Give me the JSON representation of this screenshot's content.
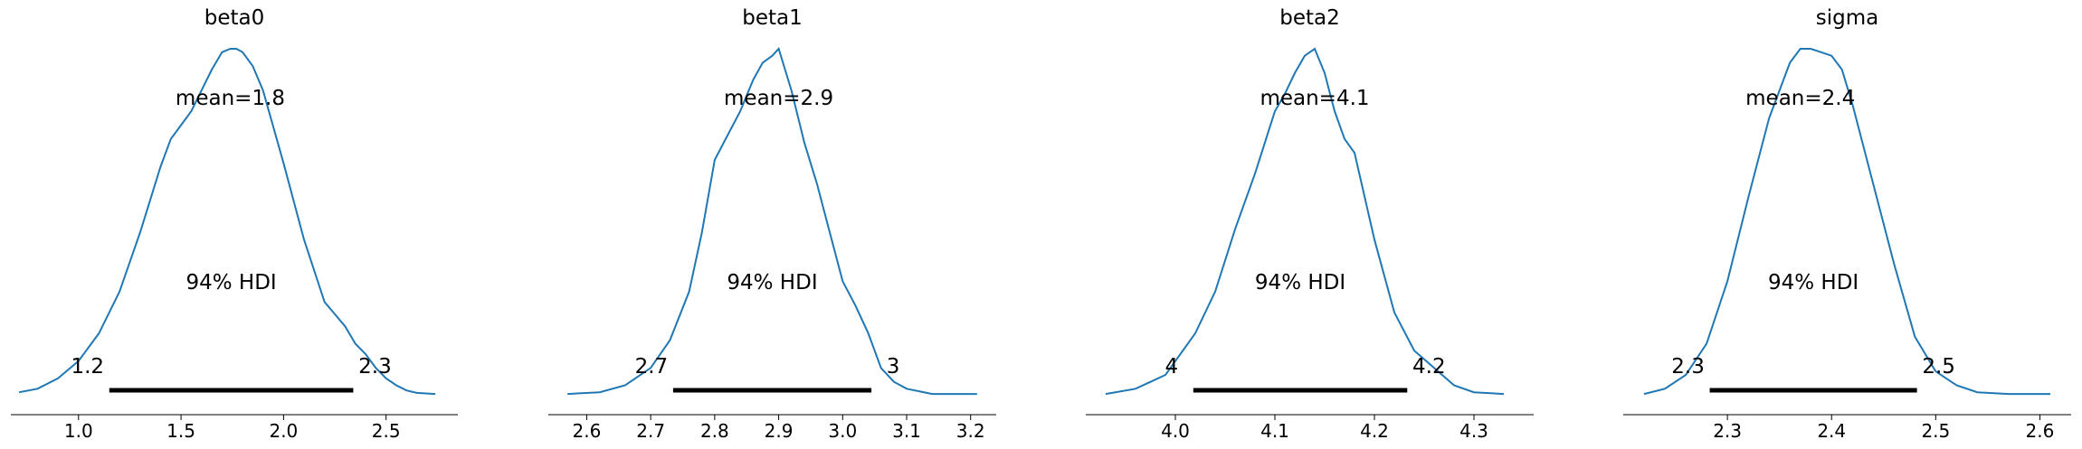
{
  "colors": {
    "line": "#1f77b4",
    "hdi_bar": "#000000",
    "axis": "#000000"
  },
  "chart_data": [
    {
      "type": "line",
      "title": "beta0",
      "mean_label": "mean=1.8",
      "hdi_prob_label": "94% HDI",
      "hdi": [
        1.15,
        2.34
      ],
      "hdi_labels": [
        "1.2",
        "2.3"
      ],
      "xlim": [
        0.67,
        2.85
      ],
      "xticks": [
        1.0,
        1.5,
        2.0,
        2.5
      ],
      "xtick_labels": [
        "1.0",
        "1.5",
        "2.0",
        "2.5"
      ],
      "x": [
        0.71,
        0.8,
        0.9,
        1.0,
        1.1,
        1.2,
        1.3,
        1.4,
        1.45,
        1.5,
        1.55,
        1.6,
        1.65,
        1.7,
        1.74,
        1.77,
        1.8,
        1.85,
        1.9,
        2.0,
        2.1,
        2.2,
        2.3,
        2.35,
        2.4,
        2.45,
        2.5,
        2.55,
        2.6,
        2.65,
        2.74
      ],
      "y": [
        0.01,
        0.02,
        0.05,
        0.1,
        0.18,
        0.3,
        0.47,
        0.66,
        0.74,
        0.78,
        0.82,
        0.88,
        0.94,
        0.99,
        1.0,
        1.0,
        0.99,
        0.95,
        0.88,
        0.67,
        0.45,
        0.27,
        0.2,
        0.15,
        0.12,
        0.08,
        0.05,
        0.03,
        0.015,
        0.008,
        0.005
      ]
    },
    {
      "type": "line",
      "title": "beta1",
      "mean_label": "mean=2.9",
      "hdi_prob_label": "94% HDI",
      "hdi": [
        2.735,
        3.045
      ],
      "hdi_labels": [
        "2.7",
        "3"
      ],
      "xlim": [
        2.54,
        3.24
      ],
      "xticks": [
        2.6,
        2.7,
        2.8,
        2.9,
        3.0,
        3.1,
        3.2
      ],
      "xtick_labels": [
        "2.6",
        "2.7",
        "2.8",
        "2.9",
        "3.0",
        "3.1",
        "3.2"
      ],
      "x": [
        2.57,
        2.62,
        2.66,
        2.7,
        2.73,
        2.76,
        2.78,
        2.8,
        2.82,
        2.84,
        2.86,
        2.875,
        2.89,
        2.9,
        2.92,
        2.94,
        2.96,
        2.98,
        3.0,
        3.02,
        3.04,
        3.06,
        3.08,
        3.1,
        3.14,
        3.21
      ],
      "y": [
        0.005,
        0.01,
        0.03,
        0.08,
        0.16,
        0.3,
        0.47,
        0.68,
        0.75,
        0.82,
        0.91,
        0.96,
        0.98,
        1.0,
        0.88,
        0.73,
        0.61,
        0.47,
        0.33,
        0.26,
        0.18,
        0.08,
        0.04,
        0.02,
        0.005,
        0.005
      ]
    },
    {
      "type": "line",
      "title": "beta2",
      "mean_label": "mean=4.1",
      "hdi_prob_label": "94% HDI",
      "hdi": [
        4.018,
        4.233
      ],
      "hdi_labels": [
        "4",
        "4.2"
      ],
      "xlim": [
        3.91,
        4.36
      ],
      "xticks": [
        4.0,
        4.1,
        4.2,
        4.3
      ],
      "xtick_labels": [
        "4.0",
        "4.1",
        "4.2",
        "4.3"
      ],
      "x": [
        3.93,
        3.96,
        3.99,
        4.02,
        4.04,
        4.06,
        4.08,
        4.1,
        4.11,
        4.12,
        4.13,
        4.14,
        4.15,
        4.16,
        4.17,
        4.18,
        4.2,
        4.22,
        4.24,
        4.26,
        4.28,
        4.3,
        4.33
      ],
      "y": [
        0.005,
        0.02,
        0.06,
        0.18,
        0.3,
        0.48,
        0.64,
        0.82,
        0.87,
        0.93,
        0.98,
        1.0,
        0.93,
        0.82,
        0.74,
        0.7,
        0.45,
        0.24,
        0.13,
        0.08,
        0.03,
        0.01,
        0.005
      ]
    },
    {
      "type": "line",
      "title": "sigma",
      "mean_label": "mean=2.4",
      "hdi_prob_label": "94% HDI",
      "hdi": [
        2.283,
        2.482
      ],
      "hdi_labels": [
        "2.3",
        "2.5"
      ],
      "xlim": [
        2.2,
        2.63
      ],
      "xticks": [
        2.3,
        2.4,
        2.5,
        2.6
      ],
      "xtick_labels": [
        "2.3",
        "2.4",
        "2.5",
        "2.6"
      ],
      "x": [
        2.22,
        2.24,
        2.26,
        2.28,
        2.3,
        2.32,
        2.34,
        2.36,
        2.37,
        2.38,
        2.39,
        2.4,
        2.41,
        2.42,
        2.44,
        2.46,
        2.48,
        2.5,
        2.52,
        2.54,
        2.57,
        2.61
      ],
      "y": [
        0.005,
        0.02,
        0.06,
        0.15,
        0.33,
        0.57,
        0.8,
        0.96,
        1.0,
        1.0,
        0.99,
        0.98,
        0.94,
        0.84,
        0.61,
        0.38,
        0.17,
        0.07,
        0.03,
        0.01,
        0.005,
        0.005
      ]
    }
  ]
}
